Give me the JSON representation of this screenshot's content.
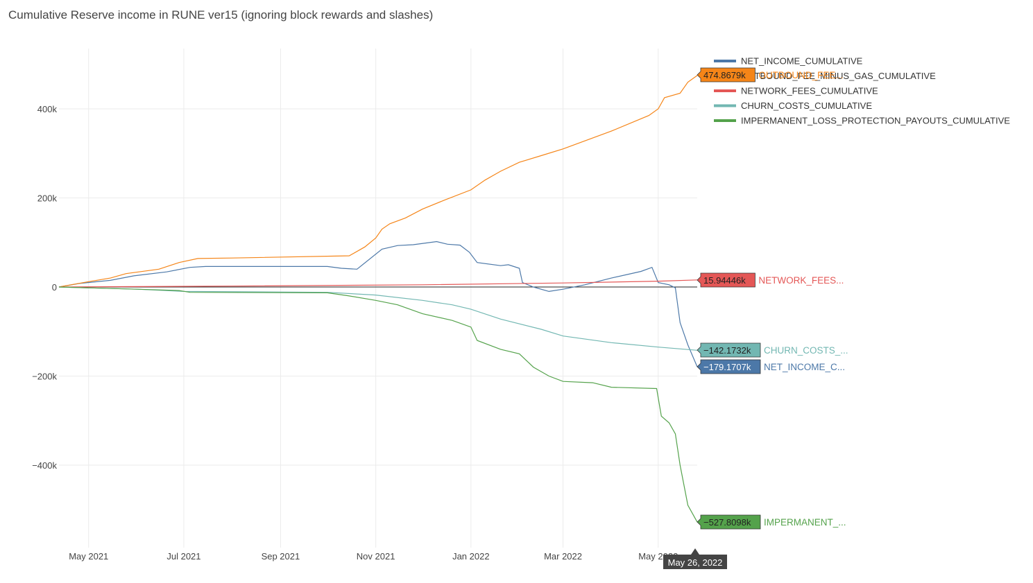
{
  "chart_data": {
    "type": "line",
    "title": "Cumulative Reserve income in RUNE ver15 (ignoring block rewards and slashes)",
    "xlabel": "",
    "ylabel": "",
    "x_ticks": [
      "May 2021",
      "Jul 2021",
      "Sep 2021",
      "Nov 2021",
      "Jan 2022",
      "Mar 2022",
      "May 2022"
    ],
    "y_ticks": [
      {
        "value": 400000,
        "label": "400k"
      },
      {
        "value": 200000,
        "label": "200k"
      },
      {
        "value": 0,
        "label": "0"
      },
      {
        "value": -200000,
        "label": "−200k"
      },
      {
        "value": -400000,
        "label": "−400k"
      }
    ],
    "ylim": [
      -580000,
      535000
    ],
    "x_range": [
      "2021-04-12",
      "2022-05-26"
    ],
    "hover_date": "May 26, 2022",
    "legend_position": "top-right",
    "series": [
      {
        "name": "NET_INCOME_CUMULATIVE",
        "color": "#4c78a8",
        "hover_label": "−179.1707k",
        "end_label": "NET_INCOME_C...",
        "points": [
          [
            "2021-04-12",
            0
          ],
          [
            "2021-04-25",
            8000
          ],
          [
            "2021-05-15",
            15000
          ],
          [
            "2021-05-30",
            25000
          ],
          [
            "2021-06-20",
            34000
          ],
          [
            "2021-07-05",
            44000
          ],
          [
            "2021-07-15",
            46000
          ],
          [
            "2021-09-01",
            46000
          ],
          [
            "2021-10-01",
            46000
          ],
          [
            "2021-10-10",
            42000
          ],
          [
            "2021-10-20",
            40000
          ],
          [
            "2021-11-05",
            85000
          ],
          [
            "2021-11-15",
            93000
          ],
          [
            "2021-11-25",
            95000
          ],
          [
            "2021-12-10",
            102000
          ],
          [
            "2021-12-17",
            96000
          ],
          [
            "2021-12-25",
            94000
          ],
          [
            "2021-12-31",
            78000
          ],
          [
            "2022-01-05",
            55000
          ],
          [
            "2022-01-20",
            48000
          ],
          [
            "2022-01-25",
            50000
          ],
          [
            "2022-02-01",
            42000
          ],
          [
            "2022-02-03",
            10000
          ],
          [
            "2022-02-10",
            0
          ],
          [
            "2022-02-20",
            -10000
          ],
          [
            "2022-03-01",
            -5000
          ],
          [
            "2022-03-15",
            5000
          ],
          [
            "2022-04-01",
            20000
          ],
          [
            "2022-04-20",
            35000
          ],
          [
            "2022-04-27",
            44000
          ],
          [
            "2022-05-01",
            10000
          ],
          [
            "2022-05-08",
            5000
          ],
          [
            "2022-05-12",
            -2000
          ],
          [
            "2022-05-15",
            -80000
          ],
          [
            "2022-05-20",
            -130000
          ],
          [
            "2022-05-26",
            -179170.7
          ]
        ]
      },
      {
        "name": "OUTBOUND_FEE_MINUS_GAS_CUMULATIVE",
        "legend_label": "OUTBOUND_FEE_MINUS_GAS_CUMULATIVE",
        "color": "#f58518",
        "hover_label": "474.8679k",
        "end_label": "OUTBOUND_FEE...",
        "points": [
          [
            "2021-04-12",
            0
          ],
          [
            "2021-05-01",
            12000
          ],
          [
            "2021-05-15",
            20000
          ],
          [
            "2021-05-25",
            30000
          ],
          [
            "2021-06-15",
            40000
          ],
          [
            "2021-06-28",
            55000
          ],
          [
            "2021-07-10",
            64000
          ],
          [
            "2021-08-01",
            65000
          ],
          [
            "2021-10-15",
            70000
          ],
          [
            "2021-10-25",
            90000
          ],
          [
            "2021-11-01",
            110000
          ],
          [
            "2021-11-05",
            130000
          ],
          [
            "2021-11-10",
            142000
          ],
          [
            "2021-11-20",
            155000
          ],
          [
            "2021-12-01",
            175000
          ],
          [
            "2021-12-15",
            195000
          ],
          [
            "2022-01-01",
            218000
          ],
          [
            "2022-01-10",
            240000
          ],
          [
            "2022-01-20",
            260000
          ],
          [
            "2022-02-01",
            280000
          ],
          [
            "2022-02-15",
            295000
          ],
          [
            "2022-03-01",
            310000
          ],
          [
            "2022-04-01",
            350000
          ],
          [
            "2022-04-25",
            385000
          ],
          [
            "2022-05-01",
            400000
          ],
          [
            "2022-05-05",
            425000
          ],
          [
            "2022-05-15",
            435000
          ],
          [
            "2022-05-20",
            460000
          ],
          [
            "2022-05-26",
            474867.9
          ]
        ]
      },
      {
        "name": "NETWORK_FEES_CUMULATIVE",
        "color": "#e45756",
        "hover_label": "15.94446k",
        "end_label": "NETWORK_FEES...",
        "points": [
          [
            "2021-04-12",
            0
          ],
          [
            "2021-08-01",
            2000
          ],
          [
            "2021-12-01",
            5000
          ],
          [
            "2022-03-01",
            9000
          ],
          [
            "2022-05-01",
            13000
          ],
          [
            "2022-05-26",
            15944.46
          ]
        ]
      },
      {
        "name": "CHURN_COSTS_CUMULATIVE",
        "color": "#72b7b2",
        "hover_label": "−142.1732k",
        "end_label": "CHURN_COSTS_...",
        "points": [
          [
            "2021-04-12",
            0
          ],
          [
            "2021-06-01",
            -5000
          ],
          [
            "2021-07-01",
            -10000
          ],
          [
            "2021-10-01",
            -12000
          ],
          [
            "2021-11-01",
            -18000
          ],
          [
            "2021-12-01",
            -30000
          ],
          [
            "2021-12-20",
            -40000
          ],
          [
            "2022-01-01",
            -50000
          ],
          [
            "2022-01-20",
            -72000
          ],
          [
            "2022-02-15",
            -95000
          ],
          [
            "2022-03-01",
            -110000
          ],
          [
            "2022-04-01",
            -125000
          ],
          [
            "2022-05-01",
            -135000
          ],
          [
            "2022-05-26",
            -142173.2
          ]
        ]
      },
      {
        "name": "IMPERMANENT_LOSS_PROTECTION_PAYOUTS_CUMULATIVE",
        "color": "#54a24b",
        "hover_label": "−527.8098k",
        "end_label": "IMPERMANENT_...",
        "points": [
          [
            "2021-04-12",
            0
          ],
          [
            "2021-06-01",
            -5000
          ],
          [
            "2021-06-28",
            -8000
          ],
          [
            "2021-07-05",
            -12000
          ],
          [
            "2021-10-01",
            -13000
          ],
          [
            "2021-10-15",
            -20000
          ],
          [
            "2021-11-01",
            -30000
          ],
          [
            "2021-11-15",
            -40000
          ],
          [
            "2021-12-01",
            -60000
          ],
          [
            "2021-12-20",
            -75000
          ],
          [
            "2022-01-01",
            -90000
          ],
          [
            "2022-01-05",
            -120000
          ],
          [
            "2022-01-20",
            -140000
          ],
          [
            "2022-02-01",
            -150000
          ],
          [
            "2022-02-10",
            -180000
          ],
          [
            "2022-02-20",
            -200000
          ],
          [
            "2022-03-01",
            -212000
          ],
          [
            "2022-03-20",
            -215000
          ],
          [
            "2022-04-01",
            -225000
          ],
          [
            "2022-04-30",
            -228000
          ],
          [
            "2022-05-03",
            -290000
          ],
          [
            "2022-05-08",
            -305000
          ],
          [
            "2022-05-12",
            -330000
          ],
          [
            "2022-05-15",
            -400000
          ],
          [
            "2022-05-20",
            -490000
          ],
          [
            "2022-05-26",
            -527809.8
          ]
        ]
      }
    ]
  }
}
